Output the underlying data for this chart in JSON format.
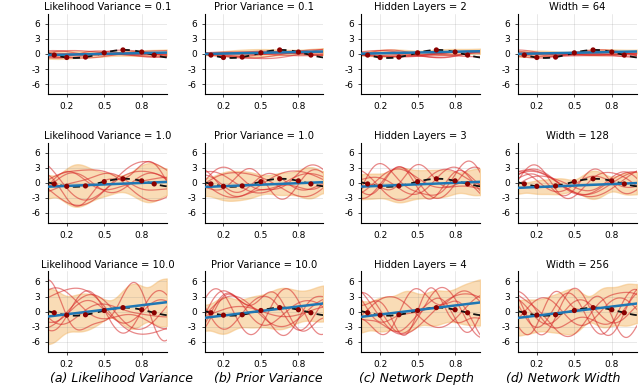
{
  "titles": [
    [
      "Likelihood Variance = 0.1",
      "Prior Variance = 0.1",
      "Hidden Layers = 2",
      "Width = 64"
    ],
    [
      "Likelihood Variance = 1.0",
      "Prior Variance = 1.0",
      "Hidden Layers = 3",
      "Width = 128"
    ],
    [
      "Likelihood Variance = 10.0",
      "Prior Variance = 10.0",
      "Hidden Layers = 4",
      "Width = 256"
    ]
  ],
  "xlabels": [
    "(a) Likelihood Variance",
    "(b) Prior Variance",
    "(c) Network Depth",
    "(d) Network Width"
  ],
  "ylim": [
    -8,
    8
  ],
  "xlim": [
    0.05,
    1.0
  ],
  "xticks": [
    0.2,
    0.5,
    0.8
  ],
  "yticks": [
    -6,
    -3,
    0,
    3,
    6
  ],
  "sample_color": "#d62728",
  "mean_color": "#1f77b4",
  "truth_color": "#111111",
  "data_color": "#8B0000",
  "fill_color": "#f5c07a",
  "fill_alpha": 0.55,
  "sample_alpha": 0.55,
  "sample_lw": 0.9,
  "mean_lw": 1.8,
  "truth_lw": 1.3,
  "background_color": "#ffffff",
  "title_fontsize": 7.2,
  "xlabel_fontsize": 9,
  "tick_fontsize": 6.5
}
